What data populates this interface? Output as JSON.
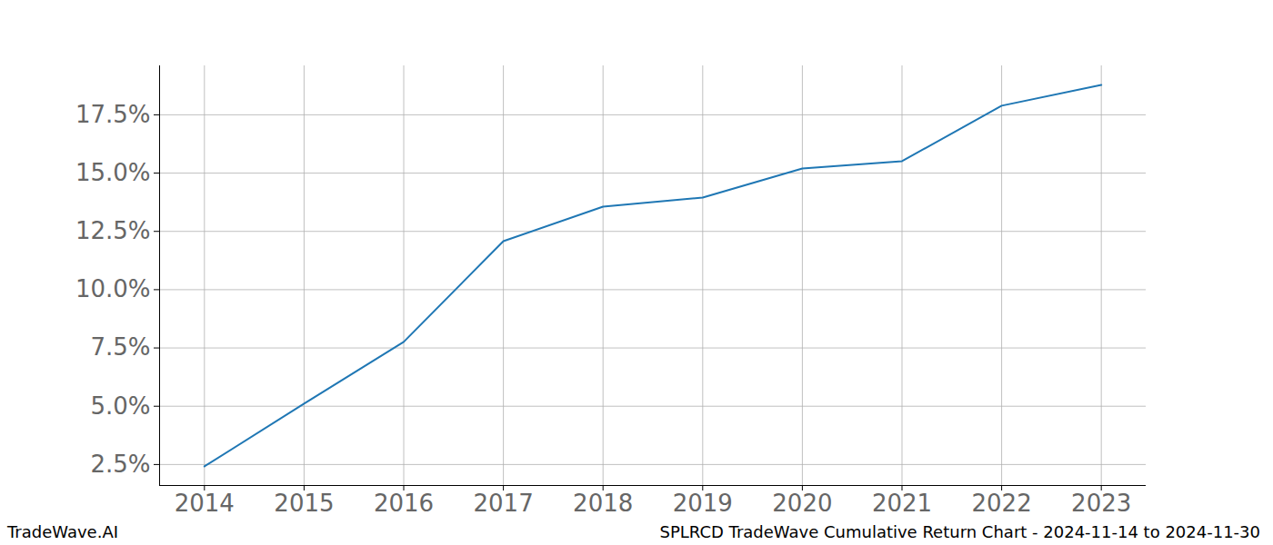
{
  "chart_data": {
    "type": "line",
    "title": "SPLRCD TradeWave Cumulative Return Chart - 2024-11-14 to 2024-11-30",
    "source": "TradeWave.AI",
    "x": [
      2014,
      2015,
      2016,
      2017,
      2018,
      2019,
      2020,
      2021,
      2022,
      2023
    ],
    "values": [
      2.42,
      5.11,
      7.76,
      12.08,
      13.56,
      13.95,
      15.2,
      15.51,
      17.89,
      18.78
    ],
    "color": "#1f77b4",
    "xlim": [
      2013.55,
      2023.45
    ],
    "xticks": [
      2014,
      2015,
      2016,
      2017,
      2018,
      2019,
      2020,
      2021,
      2022,
      2023
    ],
    "ylim": [
      1.6,
      19.6
    ],
    "yticks": [
      {
        "value": 2.5,
        "label": "2.5%"
      },
      {
        "value": 5,
        "label": "5.0%"
      },
      {
        "value": 7.5,
        "label": "7.5%"
      },
      {
        "value": 10,
        "label": "10.0%"
      },
      {
        "value": 12.5,
        "label": "12.5%"
      },
      {
        "value": 15,
        "label": "15.0%"
      },
      {
        "value": 17.5,
        "label": "17.5%"
      }
    ],
    "grid": true
  }
}
